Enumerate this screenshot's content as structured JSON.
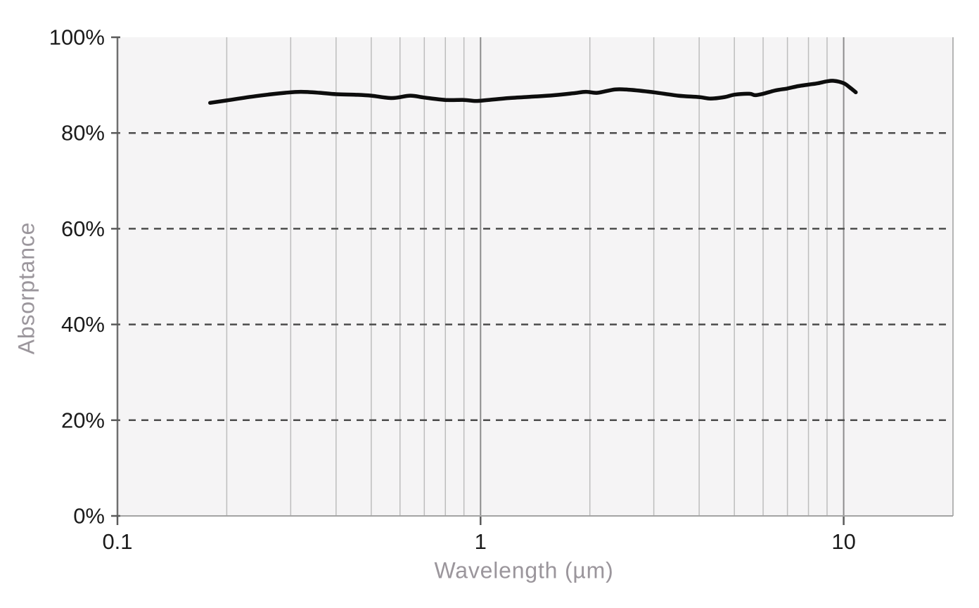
{
  "chart_data": {
    "type": "line",
    "title": "",
    "xlabel": "Wavelength (µm)",
    "ylabel": "Absorptance",
    "x_scale": "log",
    "xlim": [
      0.1,
      20
    ],
    "ylim": [
      0,
      100
    ],
    "grid": "on",
    "legend": "none",
    "x_ticks": [
      {
        "value": 0.1,
        "label": "0.1"
      },
      {
        "value": 1,
        "label": "1"
      },
      {
        "value": 10,
        "label": "10"
      }
    ],
    "x_major_gridlines": [
      1,
      10
    ],
    "x_minor_gridlines": [
      0.2,
      0.3,
      0.4,
      0.5,
      0.6,
      0.7,
      0.8,
      0.9,
      2,
      3,
      4,
      5,
      6,
      7,
      8,
      9
    ],
    "y_ticks": [
      {
        "value": 0,
        "label": "0%"
      },
      {
        "value": 20,
        "label": "20%"
      },
      {
        "value": 40,
        "label": "40%"
      },
      {
        "value": 60,
        "label": "60%"
      },
      {
        "value": 80,
        "label": "80%"
      },
      {
        "value": 100,
        "label": "100%"
      }
    ],
    "y_dashed_gridlines": [
      20,
      40,
      60,
      80
    ],
    "series": [
      {
        "name": "Absorptance",
        "color": "#0d0d0d",
        "points": [
          [
            0.18,
            86.3
          ],
          [
            0.2,
            86.8
          ],
          [
            0.24,
            87.7
          ],
          [
            0.29,
            88.4
          ],
          [
            0.32,
            88.6
          ],
          [
            0.36,
            88.4
          ],
          [
            0.4,
            88.1
          ],
          [
            0.45,
            88.0
          ],
          [
            0.5,
            87.8
          ],
          [
            0.57,
            87.3
          ],
          [
            0.64,
            87.8
          ],
          [
            0.7,
            87.4
          ],
          [
            0.8,
            86.9
          ],
          [
            0.9,
            86.9
          ],
          [
            0.97,
            86.7
          ],
          [
            1.05,
            86.9
          ],
          [
            1.2,
            87.3
          ],
          [
            1.4,
            87.6
          ],
          [
            1.6,
            87.9
          ],
          [
            1.8,
            88.3
          ],
          [
            1.95,
            88.6
          ],
          [
            2.1,
            88.4
          ],
          [
            2.35,
            89.1
          ],
          [
            2.6,
            89.0
          ],
          [
            3.0,
            88.5
          ],
          [
            3.5,
            87.8
          ],
          [
            4.0,
            87.5
          ],
          [
            4.3,
            87.2
          ],
          [
            4.7,
            87.5
          ],
          [
            5.0,
            88.0
          ],
          [
            5.5,
            88.2
          ],
          [
            5.7,
            87.9
          ],
          [
            6.0,
            88.2
          ],
          [
            6.5,
            88.9
          ],
          [
            7.0,
            89.3
          ],
          [
            7.5,
            89.8
          ],
          [
            8.0,
            90.1
          ],
          [
            8.5,
            90.4
          ],
          [
            9.0,
            90.8
          ],
          [
            9.4,
            90.9
          ],
          [
            10.0,
            90.4
          ],
          [
            10.4,
            89.5
          ],
          [
            10.8,
            88.5
          ]
        ]
      }
    ],
    "colors": {
      "plot_background": "#f5f4f5",
      "minor_grid": "#bdbdbd",
      "major_grid": "#8c8c8c",
      "dashed_grid": "#4d4d4d",
      "axis_line": "#6f6f6f",
      "bottom_border": "#a3a3a3",
      "right_border": "#b5b5b5",
      "tick_mark": "#5a5a5a",
      "tick_label": "#1b1b1b",
      "axis_title": "#9b969c"
    }
  }
}
